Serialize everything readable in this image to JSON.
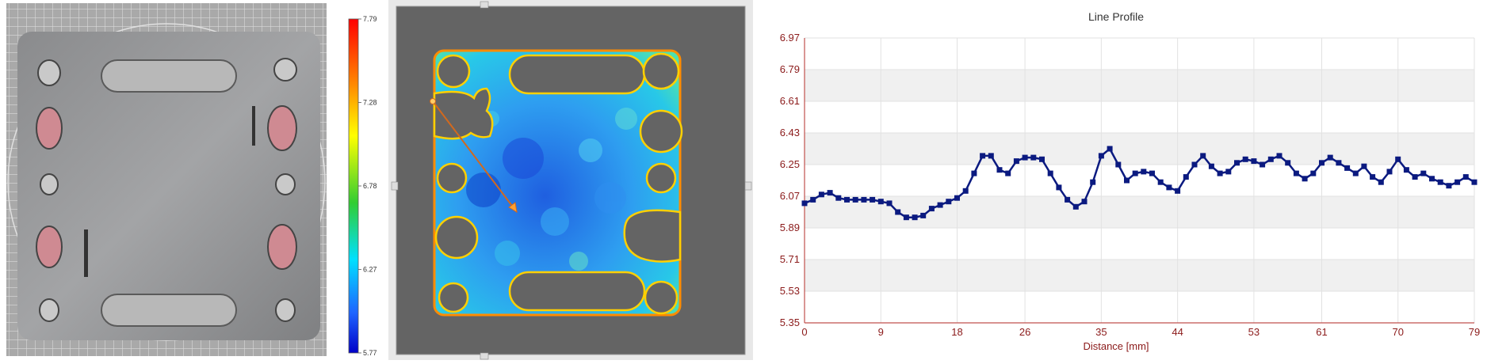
{
  "colorbar": {
    "labels": [
      "7.79",
      "7.28",
      "6.78",
      "6.27",
      "5.77"
    ]
  },
  "chart_data": {
    "type": "line",
    "title": "Line Profile",
    "xlabel": "Distance [mm]",
    "ylabel": "",
    "xlim": [
      0,
      79
    ],
    "ylim": [
      5.35,
      6.97
    ],
    "x_ticks": [
      "0",
      "9",
      "18",
      "26",
      "35",
      "44",
      "53",
      "61",
      "70",
      "79"
    ],
    "y_ticks": [
      "6.97",
      "6.79",
      "6.61",
      "6.43",
      "6.25",
      "6.07",
      "5.89",
      "5.71",
      "5.53",
      "5.35"
    ],
    "grid": true,
    "series": [
      {
        "color": "#0b1a80",
        "x": [
          0,
          1,
          2,
          3,
          4,
          5,
          6,
          7,
          8,
          9,
          10,
          11,
          12,
          13,
          14,
          15,
          16,
          17,
          18,
          19,
          20,
          21,
          22,
          23,
          24,
          25,
          26,
          27,
          28,
          29,
          30,
          31,
          32,
          33,
          34,
          35,
          36,
          37,
          38,
          39,
          40,
          41,
          42,
          43,
          44,
          45,
          46,
          47,
          48,
          49,
          50,
          51,
          52,
          53,
          54,
          55,
          56,
          57,
          58,
          59,
          60,
          61,
          62,
          63,
          64,
          65,
          66,
          67,
          68,
          69,
          70,
          71,
          72,
          73,
          74,
          75,
          76,
          77,
          78,
          79
        ],
        "values": [
          6.03,
          6.05,
          6.08,
          6.09,
          6.06,
          6.05,
          6.05,
          6.05,
          6.05,
          6.04,
          6.03,
          5.98,
          5.95,
          5.95,
          5.96,
          6.0,
          6.02,
          6.04,
          6.06,
          6.1,
          6.2,
          6.3,
          6.3,
          6.22,
          6.2,
          6.27,
          6.29,
          6.29,
          6.28,
          6.2,
          6.12,
          6.05,
          6.01,
          6.04,
          6.15,
          6.3,
          6.34,
          6.25,
          6.16,
          6.2,
          6.21,
          6.2,
          6.15,
          6.12,
          6.1,
          6.18,
          6.25,
          6.3,
          6.24,
          6.2,
          6.21,
          6.26,
          6.28,
          6.27,
          6.25,
          6.28,
          6.3,
          6.26,
          6.2,
          6.17,
          6.2,
          6.26,
          6.29,
          6.26,
          6.23,
          6.2,
          6.24,
          6.18,
          6.15,
          6.21,
          6.28,
          6.22,
          6.18,
          6.2,
          6.17,
          6.15,
          6.13,
          6.15,
          6.18,
          6.15
        ]
      }
    ]
  }
}
